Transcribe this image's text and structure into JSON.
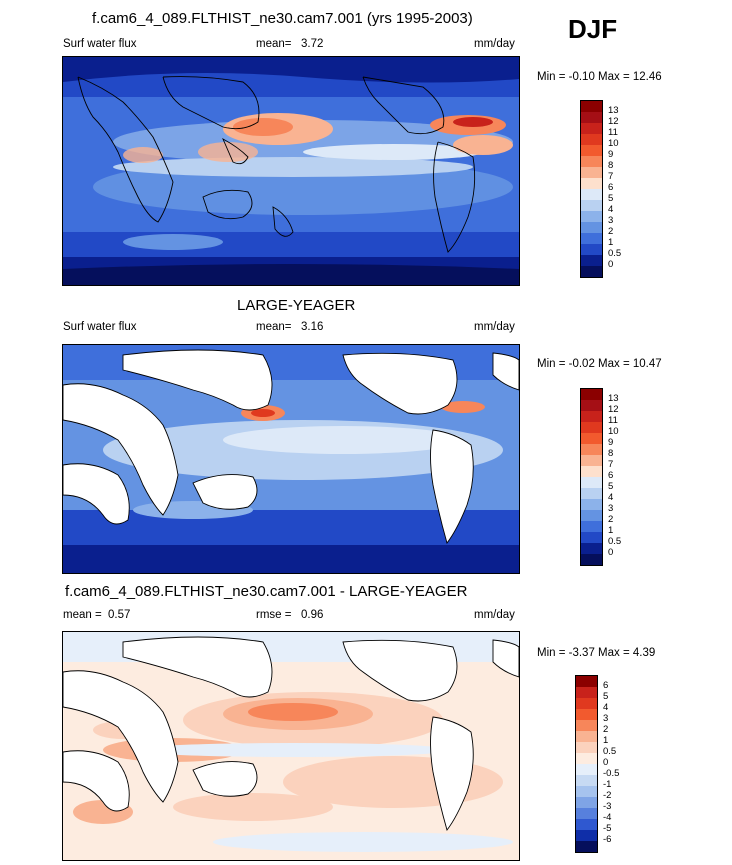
{
  "season": "DJF",
  "units": "mm/day",
  "panels": [
    {
      "title": "f.cam6_4_089.FLTHIST_ne30.cam7.001 (yrs 1995-2003)",
      "left_label": "Surf water flux",
      "mean_label": "mean=",
      "mean_value": "3.72",
      "units": "mm/day",
      "minmax": "Min =  -0.10 Max =  12.46",
      "land_masked": false,
      "colorbar_labels": [
        "13",
        "12",
        "11",
        "10",
        "9",
        "8",
        "7",
        "6",
        "5",
        "4",
        "3",
        "2",
        "1",
        "0.5",
        "0"
      ]
    },
    {
      "title": "LARGE-YEAGER",
      "left_label": "Surf water flux",
      "mean_label": "mean=",
      "mean_value": "3.16",
      "units": "mm/day",
      "minmax": "Min =  -0.02 Max =  10.47",
      "land_masked": true,
      "colorbar_labels": [
        "13",
        "12",
        "11",
        "10",
        "9",
        "8",
        "7",
        "6",
        "5",
        "4",
        "3",
        "2",
        "1",
        "0.5",
        "0"
      ]
    },
    {
      "title": "f.cam6_4_089.FLTHIST_ne30.cam7.001 - LARGE-YEAGER",
      "left_label": "mean =",
      "mean_value": "0.57",
      "rmse_label": "rmse =",
      "rmse_value": "0.96",
      "units": "mm/day",
      "minmax": "Min =  -3.37 Max =   4.39",
      "land_masked": true,
      "colorbar_labels": [
        "6",
        "5",
        "4",
        "3",
        "2",
        "1",
        "0.5",
        "0",
        "-0.5",
        "-1",
        "-2",
        "-3",
        "-4",
        "-5",
        "-6"
      ]
    }
  ],
  "colors": {
    "abs_scale": [
      "#8b0000",
      "#a50f15",
      "#c8221b",
      "#e0391f",
      "#f25a2e",
      "#f7865a",
      "#f9b392",
      "#fde0cd",
      "#dde9f8",
      "#b9d1f1",
      "#8cb2ea",
      "#6493e2",
      "#3f6fdb",
      "#2249c6",
      "#0a1f8e",
      "#050f5c"
    ],
    "diff_scale": [
      "#8b0000",
      "#c8221b",
      "#e0391f",
      "#f25a2e",
      "#f7865a",
      "#f9b392",
      "#fbd2bd",
      "#fdece0",
      "#e6effa",
      "#c7daf3",
      "#a6c3ee",
      "#7fa4e6",
      "#5780dd",
      "#2f58d0",
      "#0f2ea8",
      "#050f5c"
    ],
    "land_white": "#ffffff",
    "coast": "#000000"
  }
}
